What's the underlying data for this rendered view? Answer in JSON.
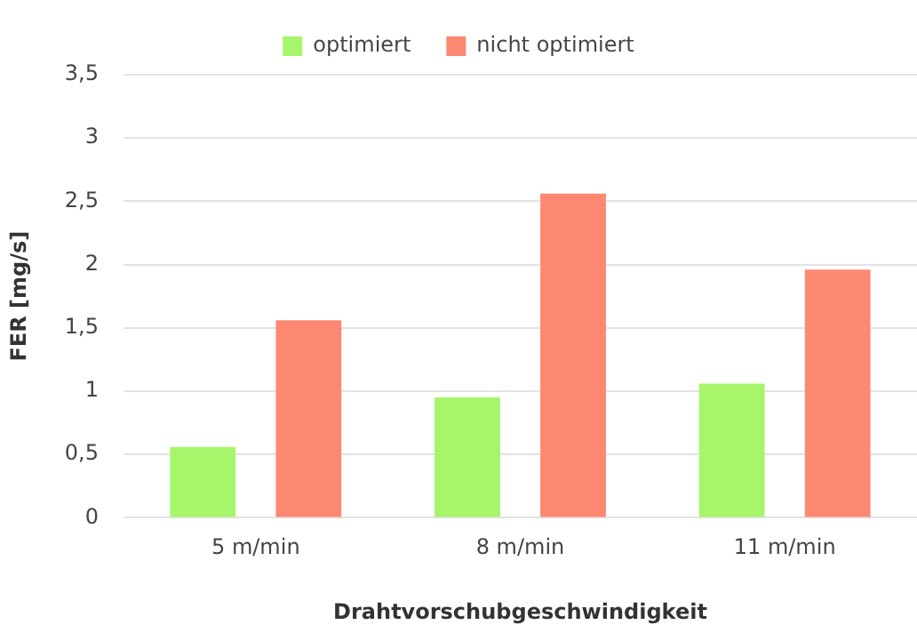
{
  "chart_data": {
    "type": "bar",
    "xlabel": "Drahtvorschubgeschwindigkeit",
    "ylabel": "FER [mg/s]",
    "categories": [
      "5 m/min",
      "8 m/min",
      "11 m/min"
    ],
    "series": [
      {
        "name": "optimiert",
        "color": "#a6f56b",
        "values": [
          0.56,
          0.95,
          1.06
        ]
      },
      {
        "name": "nicht optimiert",
        "color": "#fd8872",
        "values": [
          1.56,
          2.56,
          1.96
        ]
      }
    ],
    "ylim": [
      0,
      3.5
    ],
    "yticks": [
      0,
      {
        "value": 0.5,
        "label": "0,5"
      },
      1,
      {
        "value": 1.5,
        "label": "1,5"
      },
      2,
      {
        "value": 2.5,
        "label": "2,5"
      },
      3,
      {
        "value": 3.5,
        "label": "3,5"
      }
    ],
    "grid": "y",
    "legend": "top"
  }
}
